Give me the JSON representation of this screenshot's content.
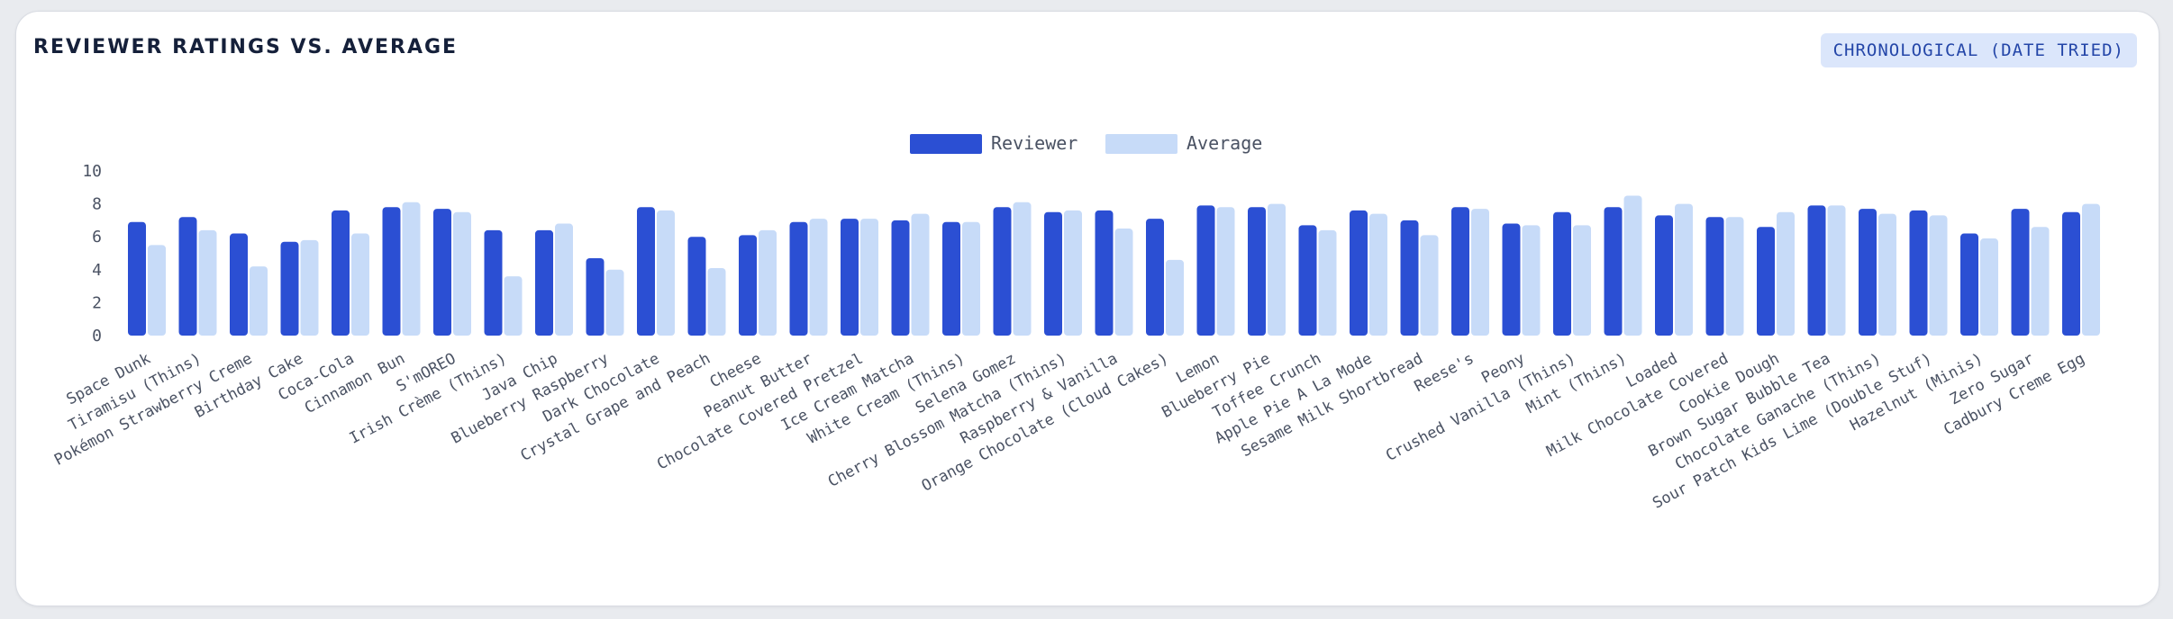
{
  "panel": {
    "title": "REVIEWER RATINGS VS. AVERAGE",
    "sort_badge": "CHRONOLOGICAL (DATE TRIED)"
  },
  "colors": {
    "reviewer": "#2b4fd3",
    "average": "#c7dbf8",
    "text": "#4a5263"
  },
  "chart_data": {
    "type": "bar",
    "title": "REVIEWER RATINGS VS. AVERAGE",
    "xlabel": "",
    "ylabel": "",
    "ylim": [
      0,
      10
    ],
    "yticks": [
      0,
      2,
      4,
      6,
      8,
      10
    ],
    "grid": false,
    "legend_position": "top-center",
    "categories": [
      "Space Dunk",
      "Tiramisu (Thins)",
      "Pokémon Strawberry Creme",
      "Birthday Cake",
      "Coca-Cola",
      "Cinnamon Bun",
      "S'mOREO",
      "Irish Crème (Thins)",
      "Java Chip",
      "Blueberry Raspberry",
      "Dark Chocolate",
      "Crystal Grape and Peach",
      "Cheese",
      "Peanut Butter",
      "Chocolate Covered Pretzel",
      "Ice Cream Matcha",
      "White Cream (Thins)",
      "Selena Gomez",
      "Cherry Blossom Matcha (Thins)",
      "Raspberry & Vanilla",
      "Orange Chocolate (Cloud Cakes)",
      "Lemon",
      "Blueberry Pie",
      "Toffee Crunch",
      "Apple Pie A La Mode",
      "Sesame Milk Shortbread",
      "Reese's",
      "Peony",
      "Crushed Vanilla (Thins)",
      "Mint (Thins)",
      "Loaded",
      "Milk Chocolate Covered",
      "Cookie Dough",
      "Brown Sugar Bubble Tea",
      "Chocolate Ganache (Thins)",
      "Sour Patch Kids Lime (Double Stuf)",
      "Hazelnut (Minis)",
      "Zero Sugar",
      "Cadbury Creme Egg"
    ],
    "series": [
      {
        "name": "Reviewer",
        "values": [
          6.9,
          7.2,
          6.2,
          5.7,
          7.6,
          7.8,
          7.7,
          6.4,
          6.4,
          4.7,
          7.8,
          6.0,
          6.1,
          6.9,
          7.1,
          7.0,
          6.9,
          7.8,
          7.5,
          7.6,
          7.1,
          7.9,
          7.8,
          6.7,
          7.6,
          7.0,
          7.8,
          6.8,
          7.5,
          7.8,
          7.3,
          7.2,
          6.6,
          7.9,
          7.7,
          7.6,
          6.2,
          7.7,
          7.5
        ]
      },
      {
        "name": "Average",
        "values": [
          5.5,
          6.4,
          4.2,
          5.8,
          6.2,
          8.1,
          7.5,
          3.6,
          6.8,
          4.0,
          7.6,
          4.1,
          6.4,
          7.1,
          7.1,
          7.4,
          6.9,
          8.1,
          7.6,
          6.5,
          4.6,
          7.8,
          8.0,
          6.4,
          7.4,
          6.1,
          7.7,
          6.7,
          6.7,
          8.5,
          8.0,
          7.2,
          7.5,
          7.9,
          7.4,
          7.3,
          5.9,
          6.6,
          8.0
        ]
      }
    ]
  }
}
